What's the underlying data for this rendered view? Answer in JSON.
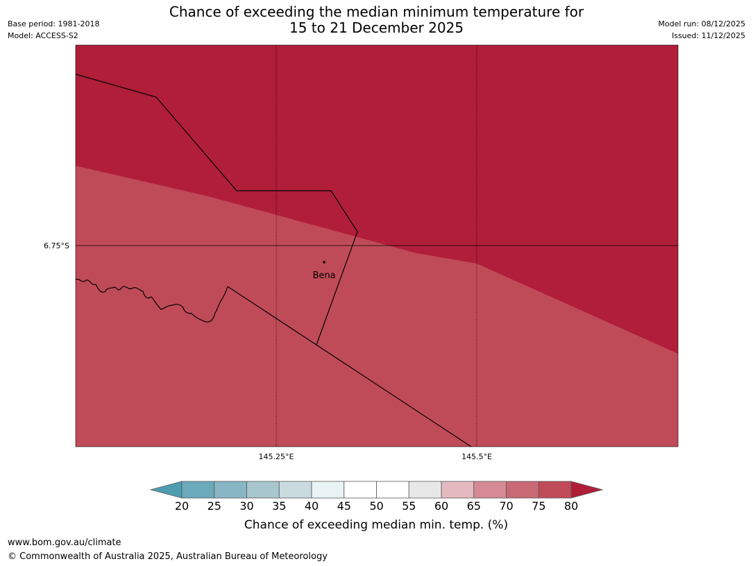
{
  "title": {
    "line1": "Chance of exceeding the median minimum temperature for",
    "line2": "15 to 21 December 2025"
  },
  "meta_left": {
    "base_period": "Base period: 1981-2018",
    "model": "Model: ACCESS-S2"
  },
  "meta_right": {
    "model_run": "Model run: 08/12/2025",
    "issued": "Issued: 11/12/2025"
  },
  "map": {
    "lat_labels": [
      "6.75°S"
    ],
    "lon_labels": [
      "145.25°E",
      "145.5°E"
    ],
    "place": {
      "name": "Bena"
    },
    "colors": {
      "class_80_plus": "#b01e3a",
      "class_75_80": "#c04b58"
    }
  },
  "colorbar": {
    "title": "Chance of exceeding median min. temp. (%)",
    "ticks": [
      "20",
      "25",
      "30",
      "35",
      "40",
      "45",
      "50",
      "55",
      "60",
      "65",
      "70",
      "75",
      "80"
    ],
    "low_extend_color": "#4d9daf",
    "high_extend_color": "#b01e3a",
    "bin_colors": [
      "#6aaabb",
      "#89b6c4",
      "#a8c6cd",
      "#c9dbdf",
      "#e9f2f4",
      "#ffffff",
      "#ffffff",
      "#e8e8e8",
      "#e3b9bf",
      "#d58a94",
      "#c96975",
      "#c04b58"
    ]
  },
  "footer": {
    "url": "www.bom.gov.au/climate",
    "copyright": "© Commonwealth of Australia 2025, Australian Bureau of Meteorology"
  }
}
